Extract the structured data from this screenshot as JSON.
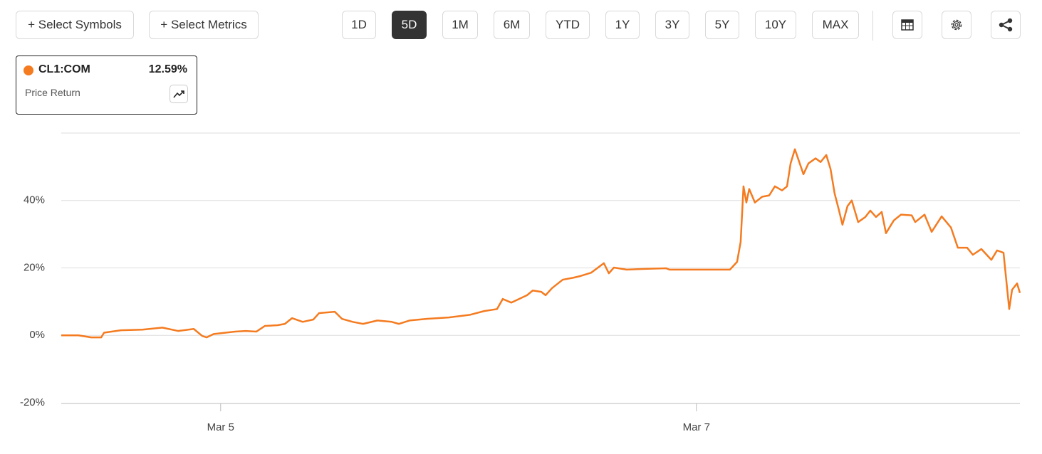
{
  "toolbar": {
    "symbols": "+ Select Symbols",
    "metrics": "+ Select Metrics",
    "ranges": [
      "1D",
      "5D",
      "1M",
      "6M",
      "YTD",
      "1Y",
      "3Y",
      "5Y",
      "10Y",
      "MAX"
    ],
    "active_range": "5D"
  },
  "chart_data": {
    "type": "line",
    "legend_value": "12.59%",
    "legend_subtitle": "Price Return",
    "x": [
      4.33,
      4.402,
      4.456,
      4.498,
      4.51,
      4.581,
      4.671,
      4.755,
      4.821,
      4.887,
      4.923,
      4.941,
      4.971,
      5.061,
      5.105,
      5.15,
      5.186,
      5.24,
      5.27,
      5.3,
      5.345,
      5.39,
      5.414,
      5.48,
      5.51,
      5.555,
      5.599,
      5.659,
      5.719,
      5.749,
      5.794,
      5.869,
      5.959,
      6.049,
      6.108,
      6.162,
      6.186,
      6.222,
      6.288,
      6.312,
      6.348,
      6.366,
      6.393,
      6.438,
      6.483,
      6.513,
      6.558,
      6.611,
      6.632,
      6.653,
      6.707,
      6.782,
      6.872,
      6.887,
      7.141,
      7.171,
      7.186,
      7.198,
      7.21,
      7.222,
      7.246,
      7.276,
      7.306,
      7.33,
      7.36,
      7.381,
      7.396,
      7.414,
      7.45,
      7.471,
      7.501,
      7.522,
      7.546,
      7.564,
      7.581,
      7.599,
      7.614,
      7.635,
      7.653,
      7.68,
      7.71,
      7.731,
      7.755,
      7.779,
      7.797,
      7.83,
      7.86,
      7.905,
      7.92,
      7.959,
      7.989,
      8.031,
      8.07,
      8.099,
      8.138,
      8.162,
      8.198,
      8.24,
      8.264,
      8.291,
      8.315,
      8.327,
      8.348,
      8.36
    ],
    "series": [
      {
        "name": "CL1:COM",
        "color": "#f47b20",
        "values": [
          0,
          0,
          -0.6,
          -0.6,
          0.8,
          1.5,
          1.7,
          2.3,
          1.3,
          1.9,
          -0.2,
          -0.6,
          0.4,
          1.1,
          1.3,
          1.1,
          2.8,
          3.0,
          3.4,
          5.1,
          4.0,
          4.7,
          6.6,
          7.0,
          4.9,
          4.0,
          3.4,
          4.4,
          4.0,
          3.4,
          4.4,
          4.9,
          5.3,
          6.1,
          7.2,
          7.8,
          10.8,
          9.7,
          11.9,
          13.3,
          12.9,
          11.9,
          14.0,
          16.5,
          17.1,
          17.6,
          18.6,
          21.4,
          18.4,
          20.1,
          19.5,
          19.7,
          19.9,
          19.5,
          19.5,
          21.8,
          27.7,
          44.2,
          39.4,
          43.4,
          39.4,
          41.1,
          41.5,
          44.2,
          43.0,
          44.2,
          51.0,
          55.2,
          47.8,
          51.0,
          52.5,
          51.4,
          53.5,
          49.3,
          42.1,
          37.2,
          32.8,
          38.3,
          40.0,
          33.6,
          35.1,
          37.0,
          35.1,
          36.6,
          30.3,
          34.1,
          35.8,
          35.6,
          33.6,
          35.8,
          30.7,
          35.3,
          32.0,
          26.0,
          26.0,
          23.9,
          25.6,
          22.4,
          25.2,
          24.5,
          7.8,
          13.5,
          15.4,
          12.59
        ]
      }
    ],
    "xlim": [
      4.33,
      8.36
    ],
    "xticks": [
      {
        "value": 5,
        "label": "Mar 5"
      },
      {
        "value": 7,
        "label": "Mar 7"
      }
    ],
    "ylim": [
      -20,
      60
    ],
    "yticks": [
      {
        "value": -20,
        "label": "-20%"
      },
      {
        "value": 0,
        "label": "0%"
      },
      {
        "value": 20,
        "label": "20%"
      },
      {
        "value": 40,
        "label": "40%"
      }
    ],
    "grid": true
  }
}
